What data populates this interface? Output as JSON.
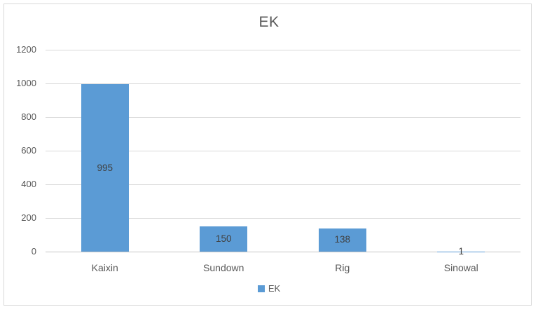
{
  "chart_data": {
    "type": "bar",
    "title": "EK",
    "categories": [
      "Kaixin",
      "Sundown",
      "Rig",
      "Sinowal"
    ],
    "values": [
      995,
      150,
      138,
      1
    ],
    "series_name": "EK",
    "xlabel": "",
    "ylabel": "",
    "ylim": [
      0,
      1200
    ],
    "ytick_step": 200,
    "ytick_labels": [
      "0",
      "200",
      "400",
      "600",
      "800",
      "1000",
      "1200"
    ],
    "grid": true,
    "data_labels": true,
    "data_label_position": "inside-center",
    "legend_position": "bottom",
    "legend_entries": [
      "EK"
    ]
  },
  "colors": {
    "bar_fill": "#5b9bd5",
    "title_text": "#595959",
    "axis_text": "#595959",
    "data_label_text": "#404040",
    "gridline": "#d9d9d9",
    "axis_line": "#c6c6c6",
    "frame_border": "#d9d9d9",
    "background": "#ffffff"
  }
}
